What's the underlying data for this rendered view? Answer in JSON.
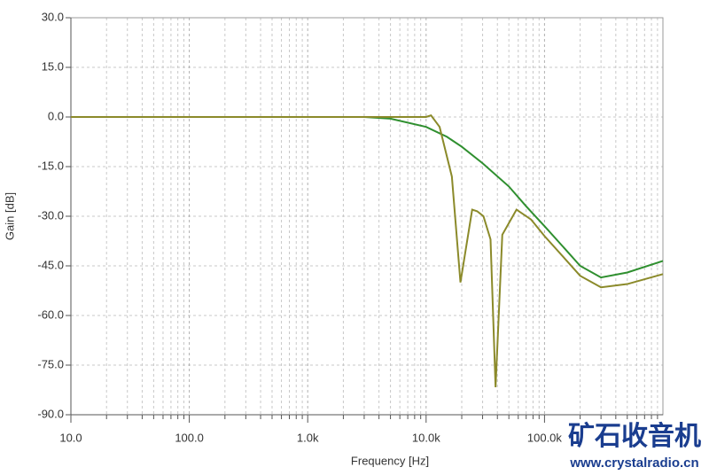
{
  "chart_data": {
    "type": "line",
    "x_label": "Frequency [Hz]",
    "y_label": "Gain [dB]",
    "log_x": true,
    "grid": true,
    "xlim": [
      10,
      1000000
    ],
    "xticks": [
      {
        "value": 10,
        "label": "10.0"
      },
      {
        "value": 100,
        "label": "100.0"
      },
      {
        "value": 1000,
        "label": "1.0k"
      },
      {
        "value": 10000,
        "label": "10.0k"
      },
      {
        "value": 100000,
        "label": "100.0k"
      }
    ],
    "ylim": [
      -90,
      30
    ],
    "yticks": [
      {
        "value": 30,
        "label": "30.0"
      },
      {
        "value": 15,
        "label": "15.0"
      },
      {
        "value": 0,
        "label": "0.0"
      },
      {
        "value": -15,
        "label": "-15.0"
      },
      {
        "value": -30,
        "label": "-30.0"
      },
      {
        "value": -45,
        "label": "-45.0"
      },
      {
        "value": -60,
        "label": "-60.0"
      },
      {
        "value": -75,
        "label": "-75.0"
      },
      {
        "value": -90,
        "label": "-90.0"
      }
    ],
    "series": [
      {
        "color": "#2f8f2f",
        "x": [
          10,
          100,
          1000,
          3000,
          5000,
          10000,
          15000,
          20000,
          30000,
          50000,
          70000,
          100000,
          150000,
          200000,
          300000,
          500000,
          1000000
        ],
        "values": [
          0,
          0,
          0,
          0,
          -0.5,
          -3,
          -6,
          -9,
          -14,
          -21,
          -27,
          -33,
          -40,
          -45,
          -48.5,
          -47,
          -43.5
        ]
      },
      {
        "color": "#8b8a2a",
        "x": [
          10,
          1000,
          5000,
          10000,
          11000,
          13000,
          16500,
          19500,
          24500,
          27000,
          30500,
          35000,
          38600,
          44000,
          58000,
          77000,
          100000,
          150000,
          200000,
          300000,
          500000,
          1000000
        ],
        "values": [
          0,
          0,
          0,
          0,
          0.5,
          -3,
          -18,
          -50,
          -28,
          -28.5,
          -30,
          -37,
          -81.7,
          -35.6,
          -28,
          -31,
          -36,
          -43,
          -48,
          -51.5,
          -50.5,
          -47.5
        ]
      }
    ]
  },
  "watermark": {
    "title": "矿石收音机",
    "url": "www.crystalradio.cn"
  }
}
